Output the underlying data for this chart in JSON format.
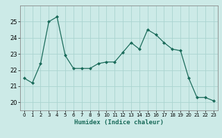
{
  "x": [
    0,
    1,
    2,
    3,
    4,
    5,
    6,
    7,
    8,
    9,
    10,
    11,
    12,
    13,
    14,
    15,
    16,
    17,
    18,
    19,
    20,
    21,
    22,
    23
  ],
  "y": [
    21.5,
    21.2,
    22.4,
    25.0,
    25.3,
    22.9,
    22.1,
    22.1,
    22.1,
    22.4,
    22.5,
    22.5,
    23.1,
    23.7,
    23.3,
    24.5,
    24.2,
    23.7,
    23.3,
    23.2,
    21.5,
    20.3,
    20.3,
    20.1
  ],
  "line_color": "#1a6b5a",
  "marker": "D",
  "marker_size": 2,
  "bg_color": "#cceae7",
  "grid_color": "#aad4d0",
  "xlabel": "Humidex (Indice chaleur)",
  "ylim": [
    19.5,
    26.0
  ],
  "xlim": [
    -0.5,
    23.5
  ],
  "yticks": [
    20,
    21,
    22,
    23,
    24,
    25
  ],
  "xticks": [
    0,
    1,
    2,
    3,
    4,
    5,
    6,
    7,
    8,
    9,
    10,
    11,
    12,
    13,
    14,
    15,
    16,
    17,
    18,
    19,
    20,
    21,
    22,
    23
  ]
}
